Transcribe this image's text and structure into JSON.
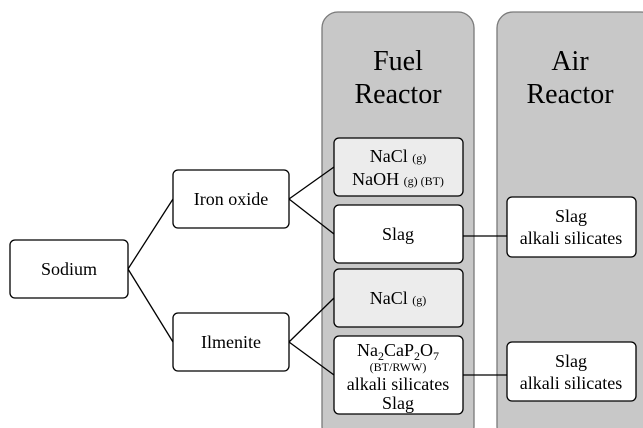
{
  "columns": [
    {
      "title_lines": [
        "Fuel",
        "Reactor"
      ]
    },
    {
      "title_lines": [
        "Air",
        "Reactor"
      ]
    }
  ],
  "nodes": {
    "sodium": "Sodium",
    "iron_oxide": "Iron oxide",
    "ilmenite": "Ilmenite",
    "fuel_gas_1": [
      [
        "NaCl",
        "(g)"
      ],
      [
        "NaOH",
        "(g) (BT)"
      ]
    ],
    "fuel_slag_1": "Slag",
    "fuel_gas_2": [
      "NaCl",
      "(g)"
    ],
    "fuel_solid_2": {
      "formula": [
        "Na",
        "2",
        "CaP",
        "2",
        "O",
        "7"
      ],
      "note": "(BT/RWW)",
      "lines": [
        "alkali silicates",
        "Slag"
      ]
    },
    "air_1": [
      "Slag",
      "alkali silicates"
    ],
    "air_2": [
      "Slag",
      "alkali silicates"
    ]
  }
}
